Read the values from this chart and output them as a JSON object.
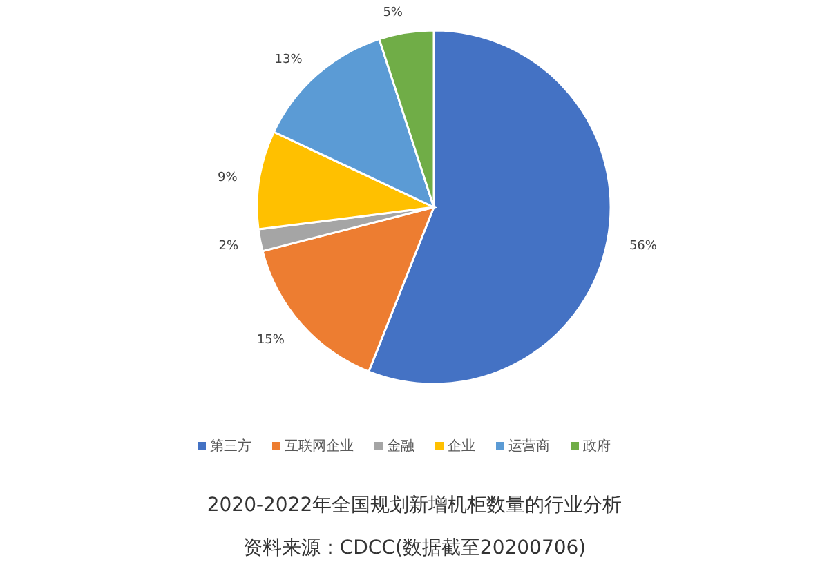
{
  "chart_data": {
    "type": "pie",
    "title": "2020-2022年全国规划新增机柜数量的行业分析",
    "annotations": [
      "资料来源：CDCC(数据截至20200706)"
    ],
    "categories": [
      "第三方",
      "互联网企业",
      "金融",
      "企业",
      "运营商",
      "政府"
    ],
    "values": [
      56,
      15,
      2,
      9,
      13,
      5
    ],
    "colors": [
      "#4472c4",
      "#ed7d31",
      "#a5a5a5",
      "#ffc000",
      "#5b9bd5",
      "#70ad47"
    ],
    "value_labels": [
      "56%",
      "15%",
      "2%",
      "9%",
      "13%",
      "5%"
    ],
    "legend": "bottom"
  }
}
